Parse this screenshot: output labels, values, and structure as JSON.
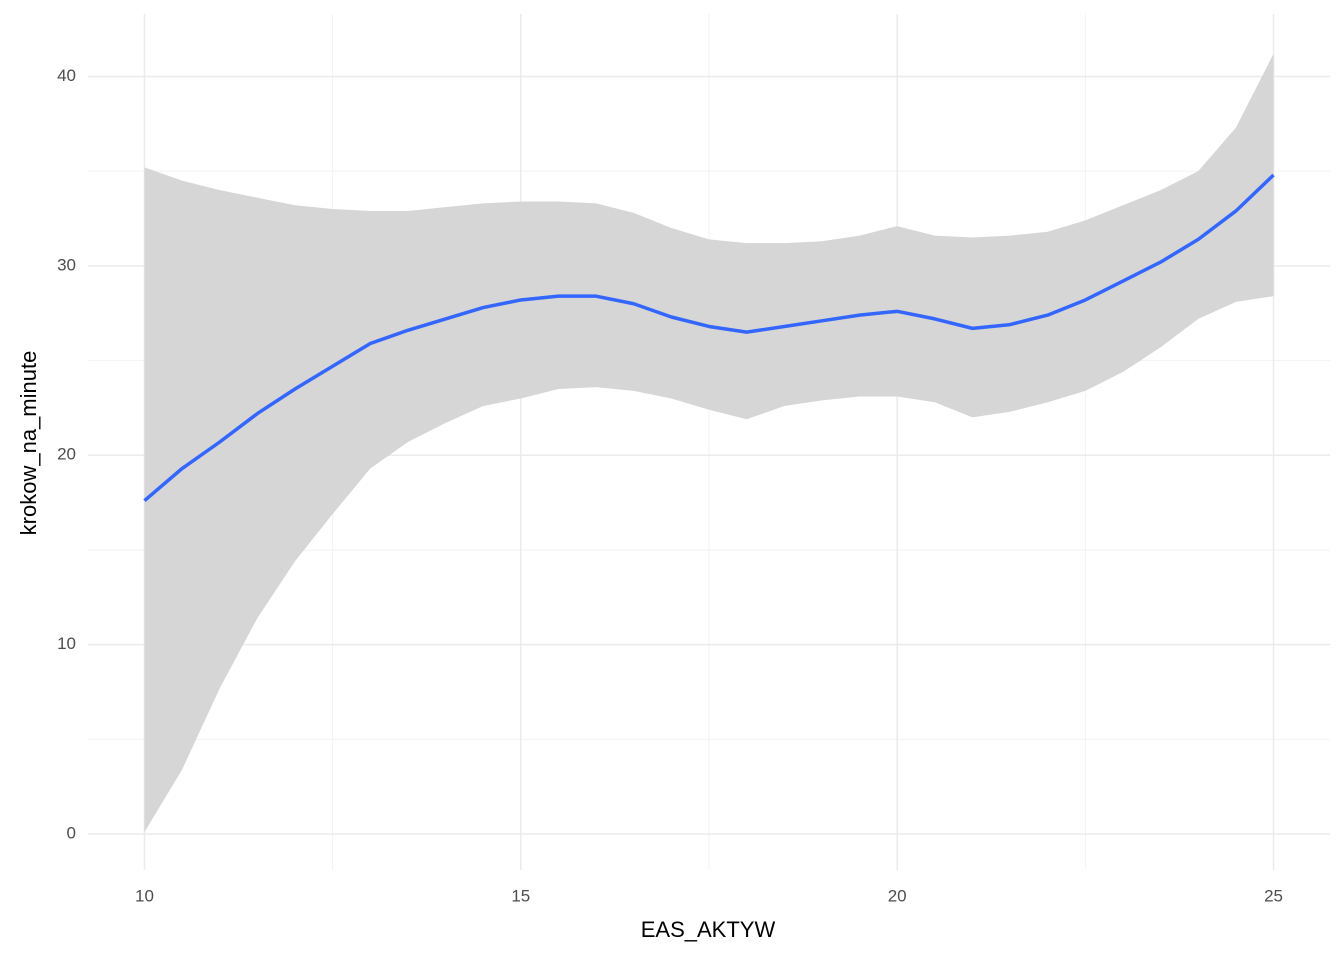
{
  "chart_data": {
    "type": "line",
    "x_label": "EAS_AKTYW",
    "y_label": "krokow_na_minute",
    "x": [
      10,
      10.5,
      11,
      11.5,
      12,
      12.5,
      13,
      13.5,
      14,
      14.5,
      15,
      15.5,
      16,
      16.5,
      17,
      17.5,
      18,
      18.5,
      19,
      19.5,
      20,
      20.5,
      21,
      21.5,
      22,
      22.5,
      23,
      23.5,
      24,
      24.5,
      25
    ],
    "values": [
      17.6,
      19.3,
      20.7,
      22.2,
      23.5,
      24.7,
      25.9,
      26.6,
      27.2,
      27.8,
      28.2,
      28.4,
      28.4,
      28.0,
      27.3,
      26.8,
      26.5,
      26.8,
      27.1,
      27.4,
      27.6,
      27.2,
      26.7,
      26.9,
      27.4,
      28.2,
      29.2,
      30.2,
      31.4,
      32.9,
      34.8
    ],
    "ci_upper": [
      35.2,
      34.5,
      34.0,
      33.6,
      33.2,
      33.0,
      32.9,
      32.9,
      33.1,
      33.3,
      33.4,
      33.4,
      33.3,
      32.8,
      32.0,
      31.4,
      31.2,
      31.2,
      31.3,
      31.6,
      32.1,
      31.6,
      31.5,
      31.6,
      31.8,
      32.4,
      33.2,
      34.0,
      35.0,
      37.3,
      41.2
    ],
    "ci_lower": [
      0.1,
      3.4,
      7.7,
      11.4,
      14.4,
      16.9,
      19.3,
      20.7,
      21.7,
      22.6,
      23.0,
      23.5,
      23.6,
      23.4,
      23.0,
      22.4,
      21.9,
      22.6,
      22.9,
      23.1,
      23.1,
      22.8,
      22.0,
      22.3,
      22.8,
      23.4,
      24.4,
      25.7,
      27.2,
      28.1,
      28.4
    ],
    "color": "#3366ff",
    "band_color": "#d6d6d6",
    "xlim": [
      9.25,
      25.75
    ],
    "ylim": [
      -1.9,
      43.3
    ],
    "xticks": [
      10,
      15,
      20,
      25
    ],
    "yticks": [
      0,
      10,
      20,
      30,
      40
    ],
    "xminor": [
      12.5,
      17.5,
      22.5
    ],
    "yminor": [
      5,
      15,
      25,
      35
    ],
    "grid": true
  }
}
